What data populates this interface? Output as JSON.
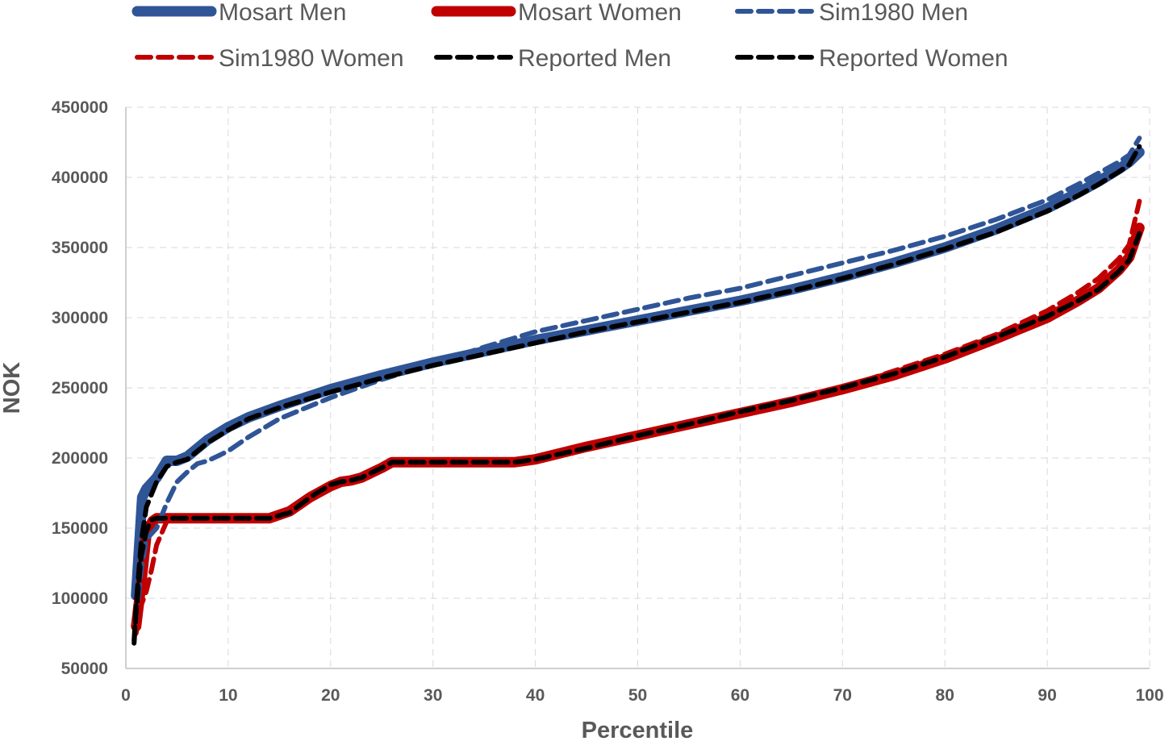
{
  "chart_data": {
    "type": "line",
    "title": "",
    "xlabel": "Percentile",
    "ylabel": "NOK",
    "xlim": [
      0,
      100
    ],
    "ylim": [
      50000,
      450000
    ],
    "xticks": [
      "0",
      "10",
      "20",
      "30",
      "40",
      "50",
      "60",
      "70",
      "80",
      "90",
      "100"
    ],
    "yticks": [
      "50000",
      "100000",
      "150000",
      "200000",
      "250000",
      "300000",
      "350000",
      "400000",
      "450000"
    ],
    "grid": true,
    "legend": "top",
    "series": [
      {
        "name": "Mosart Men",
        "color": "#2f5597",
        "style": "solid-thick",
        "x": [
          1,
          1.6,
          2,
          3,
          4,
          5,
          6,
          8,
          10,
          12,
          15,
          20,
          25,
          30,
          35,
          40,
          45,
          50,
          55,
          60,
          65,
          70,
          75,
          80,
          85,
          90,
          93,
          95,
          97,
          98,
          99
        ],
        "y": [
          102000,
          172000,
          178000,
          186000,
          198000,
          198000,
          201000,
          213000,
          222000,
          229000,
          237000,
          249000,
          259000,
          268000,
          276000,
          284000,
          291000,
          298000,
          305000,
          312000,
          320000,
          329000,
          339000,
          350000,
          363000,
          378000,
          389000,
          397000,
          406000,
          411000,
          418000
        ]
      },
      {
        "name": "Mosart Women",
        "color": "#c00000",
        "style": "solid-thick",
        "x": [
          1,
          1.5,
          2,
          2.6,
          3,
          5,
          10,
          14,
          16,
          18,
          20,
          21,
          22,
          23,
          25,
          26,
          30,
          35,
          38,
          40,
          45,
          50,
          55,
          60,
          65,
          70,
          75,
          80,
          85,
          90,
          93,
          95,
          97,
          98,
          99
        ],
        "y": [
          80000,
          110000,
          145000,
          155000,
          157000,
          157000,
          157000,
          157000,
          162000,
          172000,
          180000,
          183000,
          184000,
          186000,
          193000,
          197000,
          197000,
          197000,
          197000,
          199000,
          208000,
          216000,
          224000,
          232000,
          240000,
          249000,
          259000,
          271000,
          285000,
          300000,
          312000,
          321000,
          334000,
          343000,
          364000
        ]
      },
      {
        "name": "Sim1980 Men",
        "color": "#2f5597",
        "style": "dashed",
        "x": [
          1,
          1.5,
          2,
          3,
          4,
          5,
          6,
          7,
          8,
          10,
          12,
          15,
          20,
          25,
          30,
          35,
          40,
          45,
          50,
          55,
          60,
          65,
          70,
          75,
          80,
          85,
          90,
          93,
          95,
          97,
          98,
          99
        ],
        "y": [
          85000,
          120000,
          142000,
          150000,
          168000,
          183000,
          190000,
          196000,
          198000,
          205000,
          215000,
          228000,
          243000,
          256000,
          267000,
          279000,
          290000,
          298000,
          306000,
          314000,
          321000,
          330000,
          339000,
          348000,
          358000,
          370000,
          384000,
          395000,
          403000,
          411000,
          416000,
          428000
        ]
      },
      {
        "name": "Sim1980 Women",
        "color": "#c00000",
        "style": "dashed",
        "x": [
          1,
          1.5,
          2,
          2.5,
          3,
          4,
          5,
          10,
          14,
          16,
          18,
          20,
          21,
          22,
          23,
          25,
          26,
          30,
          35,
          38,
          40,
          45,
          50,
          55,
          60,
          65,
          70,
          75,
          80,
          85,
          90,
          93,
          95,
          97,
          98,
          99
        ],
        "y": [
          75000,
          95000,
          105000,
          120000,
          138000,
          155000,
          157000,
          157000,
          157000,
          161000,
          173000,
          181000,
          184000,
          185000,
          187000,
          193000,
          197000,
          197000,
          197000,
          197000,
          199000,
          207000,
          216000,
          224000,
          232000,
          241000,
          250000,
          262000,
          274000,
          288000,
          305000,
          318000,
          328000,
          342000,
          352000,
          383000
        ]
      },
      {
        "name": "Reported Men",
        "color": "#000000",
        "style": "dashed",
        "x": [
          0.8,
          1,
          1.5,
          2,
          3,
          4,
          5,
          6,
          8,
          10,
          12,
          15,
          20,
          25,
          30,
          35,
          40,
          45,
          50,
          55,
          60,
          65,
          70,
          75,
          80,
          85,
          90,
          93,
          95,
          97,
          98,
          99
        ],
        "y": [
          70000,
          95000,
          140000,
          165000,
          183000,
          194000,
          197000,
          199000,
          211000,
          220000,
          228000,
          236000,
          247000,
          257000,
          266000,
          274000,
          282000,
          290000,
          297000,
          304000,
          311000,
          319000,
          328000,
          338000,
          349000,
          361000,
          376000,
          387000,
          395000,
          404000,
          409000,
          422000
        ]
      },
      {
        "name": "Reported Women",
        "color": "#000000",
        "style": "dashed",
        "x": [
          0.8,
          1,
          1.5,
          2,
          2.5,
          3,
          5,
          10,
          14,
          16,
          18,
          20,
          21,
          22,
          23,
          25,
          26,
          30,
          35,
          38,
          40,
          45,
          50,
          55,
          60,
          65,
          70,
          75,
          80,
          85,
          90,
          93,
          95,
          97,
          98,
          99
        ],
        "y": [
          68000,
          90000,
          130000,
          148000,
          156000,
          157000,
          157000,
          157000,
          157000,
          161000,
          172000,
          181000,
          183000,
          184000,
          186000,
          193000,
          197000,
          197000,
          197000,
          197000,
          199000,
          207000,
          216000,
          224000,
          233000,
          241000,
          250000,
          260000,
          272000,
          286000,
          301000,
          312000,
          320000,
          333000,
          341000,
          360000
        ]
      }
    ]
  }
}
